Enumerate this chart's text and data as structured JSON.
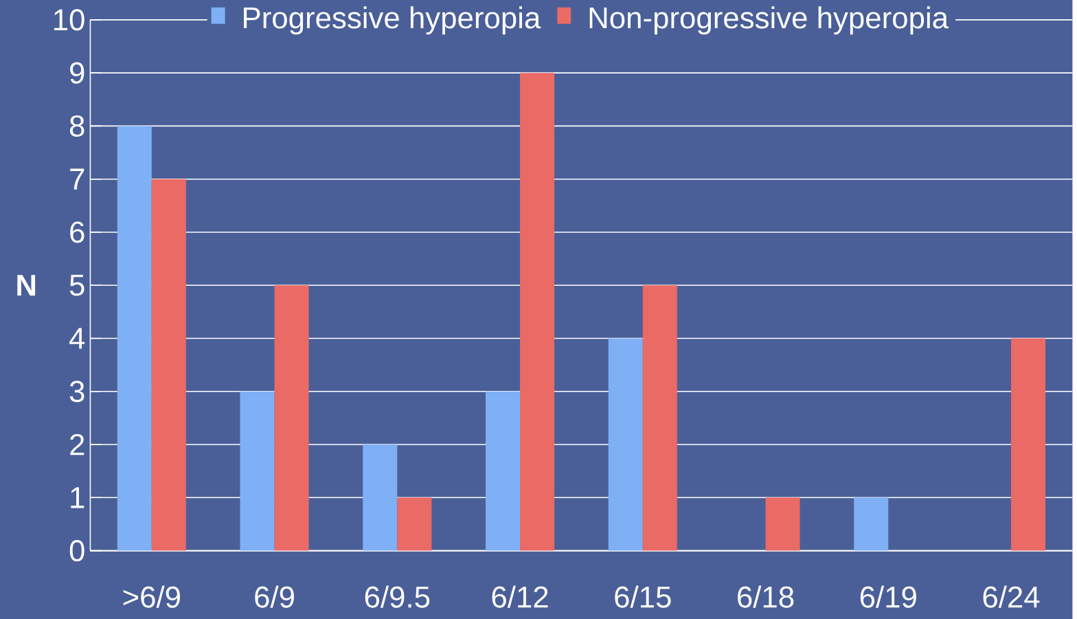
{
  "chart_data": {
    "type": "bar",
    "ylabel": "N",
    "categories": [
      ">6/9",
      "6/9",
      "6/9.5",
      "6/12",
      "6/15",
      "6/18",
      "6/19",
      "6/24"
    ],
    "series": [
      {
        "name": "Progressive hyperopia",
        "color": "#7fb0f5",
        "values": [
          8,
          3,
          2,
          3,
          4,
          0,
          1,
          0
        ]
      },
      {
        "name": "Non-progressive hyperopia",
        "color": "#ea6a66",
        "values": [
          7,
          5,
          1,
          9,
          5,
          1,
          0,
          4
        ]
      }
    ],
    "ylim": [
      0,
      10
    ],
    "yticks": [
      0,
      1,
      2,
      3,
      4,
      5,
      6,
      7,
      8,
      9,
      10
    ],
    "grid": "y",
    "legend": "top"
  }
}
